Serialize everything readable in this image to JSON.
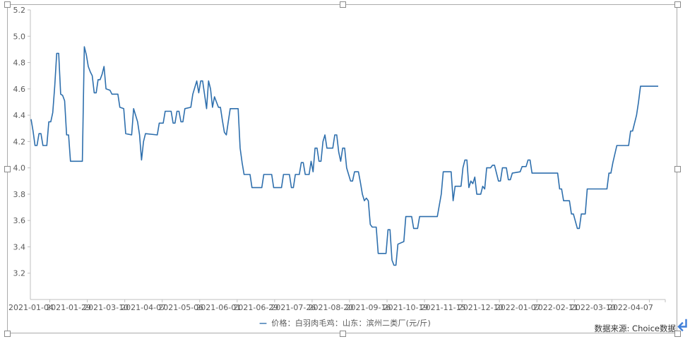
{
  "chart_data": {
    "type": "line",
    "title": "",
    "xlabel": "",
    "ylabel": "",
    "grid": false,
    "legend_position": "bottom",
    "ylim": [
      3.0,
      5.2
    ],
    "y_tick_values": [
      3.2,
      3.4,
      3.6,
      3.8,
      4.0,
      4.2,
      4.4,
      4.6,
      4.8,
      5.0,
      5.2
    ],
    "x_span_days": 318,
    "x_tick_days": [
      0,
      19,
      38,
      57,
      76,
      95,
      114,
      133,
      152,
      171,
      190,
      209,
      228,
      247,
      266,
      285,
      304
    ],
    "x_tick_labels": [
      "2021-01-04",
      "2021-01-29",
      "2021-03-10",
      "2021-04-07",
      "2021-05-06",
      "2021-06-01",
      "2021-06-29",
      "2021-07-26",
      "2021-08-20",
      "2021-09-16",
      "2021-10-19",
      "2021-11-15",
      "2021-12-10",
      "2022-01-07",
      "2022-02-11",
      "2022-03-10",
      "2022-04-07"
    ],
    "axis_color": "#bfbfbf",
    "tick_label_color": "#595959",
    "series": [
      {
        "name": "价格：白羽肉毛鸡：山东：滨州二类厂(元/斤)",
        "color": "#2e6fad",
        "points": [
          [
            0,
            4.37
          ],
          [
            1,
            4.28
          ],
          [
            2,
            4.17
          ],
          [
            3,
            4.17
          ],
          [
            4,
            4.26
          ],
          [
            5,
            4.26
          ],
          [
            6,
            4.17
          ],
          [
            8,
            4.17
          ],
          [
            9,
            4.35
          ],
          [
            10,
            4.35
          ],
          [
            11,
            4.42
          ],
          [
            12,
            4.62
          ],
          [
            13,
            4.87
          ],
          [
            14,
            4.87
          ],
          [
            15,
            4.56
          ],
          [
            16,
            4.55
          ],
          [
            17,
            4.51
          ],
          [
            18,
            4.25
          ],
          [
            19,
            4.25
          ],
          [
            20,
            4.05
          ],
          [
            26,
            4.05
          ],
          [
            27,
            4.92
          ],
          [
            28,
            4.86
          ],
          [
            29,
            4.77
          ],
          [
            30,
            4.73
          ],
          [
            31,
            4.7
          ],
          [
            32,
            4.57
          ],
          [
            33,
            4.57
          ],
          [
            34,
            4.67
          ],
          [
            35,
            4.67
          ],
          [
            36,
            4.71
          ],
          [
            37,
            4.77
          ],
          [
            38,
            4.6
          ],
          [
            40,
            4.59
          ],
          [
            41,
            4.56
          ],
          [
            44,
            4.56
          ],
          [
            45,
            4.46
          ],
          [
            47,
            4.45
          ],
          [
            48,
            4.26
          ],
          [
            51,
            4.25
          ],
          [
            52,
            4.45
          ],
          [
            54,
            4.35
          ],
          [
            55,
            4.25
          ],
          [
            56,
            4.06
          ],
          [
            57,
            4.2
          ],
          [
            58,
            4.26
          ],
          [
            64,
            4.25
          ],
          [
            65,
            4.34
          ],
          [
            67,
            4.34
          ],
          [
            68,
            4.43
          ],
          [
            71,
            4.43
          ],
          [
            72,
            4.34
          ],
          [
            73,
            4.34
          ],
          [
            74,
            4.43
          ],
          [
            75,
            4.43
          ],
          [
            76,
            4.35
          ],
          [
            77,
            4.35
          ],
          [
            78,
            4.45
          ],
          [
            81,
            4.46
          ],
          [
            82,
            4.56
          ],
          [
            84,
            4.66
          ],
          [
            85,
            4.57
          ],
          [
            86,
            4.66
          ],
          [
            87,
            4.66
          ],
          [
            89,
            4.45
          ],
          [
            90,
            4.66
          ],
          [
            91,
            4.6
          ],
          [
            92,
            4.46
          ],
          [
            93,
            4.54
          ],
          [
            95,
            4.46
          ],
          [
            96,
            4.46
          ],
          [
            97,
            4.36
          ],
          [
            98,
            4.27
          ],
          [
            99,
            4.25
          ],
          [
            100,
            4.35
          ],
          [
            101,
            4.45
          ],
          [
            105,
            4.45
          ],
          [
            106,
            4.15
          ],
          [
            107,
            4.04
          ],
          [
            108,
            3.95
          ],
          [
            111,
            3.95
          ],
          [
            112,
            3.85
          ],
          [
            117,
            3.85
          ],
          [
            118,
            3.95
          ],
          [
            122,
            3.95
          ],
          [
            123,
            3.85
          ],
          [
            127,
            3.85
          ],
          [
            128,
            3.95
          ],
          [
            131,
            3.95
          ],
          [
            132,
            3.85
          ],
          [
            133,
            3.85
          ],
          [
            134,
            3.95
          ],
          [
            136,
            3.95
          ],
          [
            137,
            4.04
          ],
          [
            138,
            4.04
          ],
          [
            139,
            3.95
          ],
          [
            141,
            3.95
          ],
          [
            142,
            4.05
          ],
          [
            143,
            3.97
          ],
          [
            144,
            4.15
          ],
          [
            145,
            4.15
          ],
          [
            146,
            4.05
          ],
          [
            147,
            4.05
          ],
          [
            148,
            4.2
          ],
          [
            149,
            4.25
          ],
          [
            150,
            4.15
          ],
          [
            153,
            4.15
          ],
          [
            154,
            4.25
          ],
          [
            155,
            4.25
          ],
          [
            156,
            4.12
          ],
          [
            157,
            4.05
          ],
          [
            158,
            4.15
          ],
          [
            159,
            4.15
          ],
          [
            160,
            4.0
          ],
          [
            161,
            3.95
          ],
          [
            162,
            3.9
          ],
          [
            163,
            3.9
          ],
          [
            164,
            3.97
          ],
          [
            166,
            3.97
          ],
          [
            167,
            3.89
          ],
          [
            168,
            3.8
          ],
          [
            169,
            3.75
          ],
          [
            170,
            3.77
          ],
          [
            171,
            3.75
          ],
          [
            172,
            3.57
          ],
          [
            173,
            3.55
          ],
          [
            175,
            3.55
          ],
          [
            176,
            3.35
          ],
          [
            180,
            3.35
          ],
          [
            181,
            3.53
          ],
          [
            182,
            3.53
          ],
          [
            183,
            3.3
          ],
          [
            184,
            3.26
          ],
          [
            185,
            3.26
          ],
          [
            186,
            3.42
          ],
          [
            189,
            3.44
          ],
          [
            190,
            3.63
          ],
          [
            193,
            3.63
          ],
          [
            194,
            3.54
          ],
          [
            196,
            3.54
          ],
          [
            197,
            3.63
          ],
          [
            206,
            3.63
          ],
          [
            208,
            3.8
          ],
          [
            209,
            3.97
          ],
          [
            213,
            3.97
          ],
          [
            214,
            3.75
          ],
          [
            215,
            3.86
          ],
          [
            218,
            3.86
          ],
          [
            219,
            4.0
          ],
          [
            220,
            4.06
          ],
          [
            221,
            4.06
          ],
          [
            222,
            3.85
          ],
          [
            223,
            3.9
          ],
          [
            224,
            3.88
          ],
          [
            225,
            3.93
          ],
          [
            226,
            3.8
          ],
          [
            228,
            3.8
          ],
          [
            229,
            3.86
          ],
          [
            230,
            3.84
          ],
          [
            231,
            4.0
          ],
          [
            233,
            4.0
          ],
          [
            234,
            4.02
          ],
          [
            235,
            4.02
          ],
          [
            237,
            3.9
          ],
          [
            238,
            3.9
          ],
          [
            239,
            4.0
          ],
          [
            241,
            4.0
          ],
          [
            242,
            3.91
          ],
          [
            243,
            3.91
          ],
          [
            244,
            3.96
          ],
          [
            248,
            3.97
          ],
          [
            249,
            4.01
          ],
          [
            251,
            4.01
          ],
          [
            252,
            4.06
          ],
          [
            253,
            4.06
          ],
          [
            254,
            3.96
          ],
          [
            261,
            3.96
          ],
          [
            262,
            3.96
          ],
          [
            267,
            3.96
          ],
          [
            268,
            3.84
          ],
          [
            269,
            3.84
          ],
          [
            270,
            3.75
          ],
          [
            273,
            3.75
          ],
          [
            274,
            3.65
          ],
          [
            275,
            3.65
          ],
          [
            277,
            3.54
          ],
          [
            278,
            3.54
          ],
          [
            279,
            3.65
          ],
          [
            281,
            3.65
          ],
          [
            282,
            3.84
          ],
          [
            292,
            3.84
          ],
          [
            293,
            3.96
          ],
          [
            294,
            3.96
          ],
          [
            295,
            4.04
          ],
          [
            297,
            4.17
          ],
          [
            303,
            4.17
          ],
          [
            304,
            4.28
          ],
          [
            305,
            4.28
          ],
          [
            307,
            4.4
          ],
          [
            308,
            4.5
          ],
          [
            309,
            4.62
          ],
          [
            315,
            4.62
          ],
          [
            318,
            4.62
          ]
        ]
      }
    ]
  },
  "legend": {
    "marker": "—",
    "label": "价格：白羽肉毛鸡：山东：滨州二类厂(元/斤)"
  },
  "footer": {
    "source_label": "数据来源: Choice数据"
  },
  "icons": {
    "paragraph_return_color": "#3f7ed8"
  }
}
